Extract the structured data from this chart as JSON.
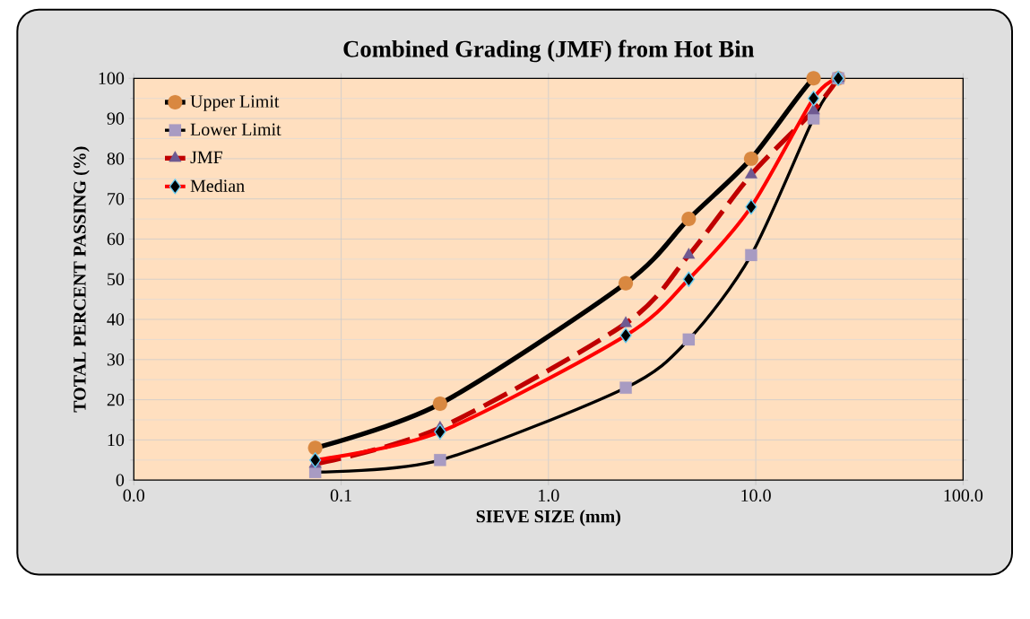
{
  "chart_data": {
    "type": "line",
    "title": "Combined  Grading (JMF) from Hot Bin",
    "xlabel": "SIEVE SIZE (mm)",
    "ylabel": "TOTAL PERCENT PASSING (%)",
    "x": [
      0.075,
      0.3,
      2.36,
      4.75,
      9.5,
      19,
      25
    ],
    "series": [
      {
        "name": "Upper Limit",
        "color": "#000000",
        "marker": "circle",
        "line_style": "solid",
        "values": [
          8,
          19,
          49,
          65,
          80,
          100,
          100
        ]
      },
      {
        "name": "Lower Limit",
        "color": "#000000",
        "marker": "square",
        "line_style": "solid",
        "values": [
          2,
          5,
          23,
          35,
          56,
          90,
          100
        ]
      },
      {
        "name": "JMF",
        "color": "#c00000",
        "marker": "triangle",
        "line_style": "dashed",
        "values": [
          4,
          13,
          39,
          56,
          76,
          92,
          100
        ]
      },
      {
        "name": "Median",
        "color": "#ff0000",
        "marker": "diamond",
        "line_style": "solid",
        "values": [
          5,
          12,
          36,
          50,
          68,
          95,
          100
        ]
      }
    ],
    "log": "x",
    "xlim": [
      0.01,
      100
    ],
    "ylim": [
      0,
      100
    ],
    "xticks": [
      {
        "value": 0.01,
        "label": "0.0"
      },
      {
        "value": 0.1,
        "label": "0.1"
      },
      {
        "value": 1,
        "label": "1.0"
      },
      {
        "value": 10,
        "label": "10.0"
      },
      {
        "value": 100,
        "label": "100.0"
      }
    ],
    "yticks": [
      0,
      10,
      20,
      30,
      40,
      50,
      60,
      70,
      80,
      90,
      100
    ],
    "grid": true,
    "legend": "top left"
  }
}
